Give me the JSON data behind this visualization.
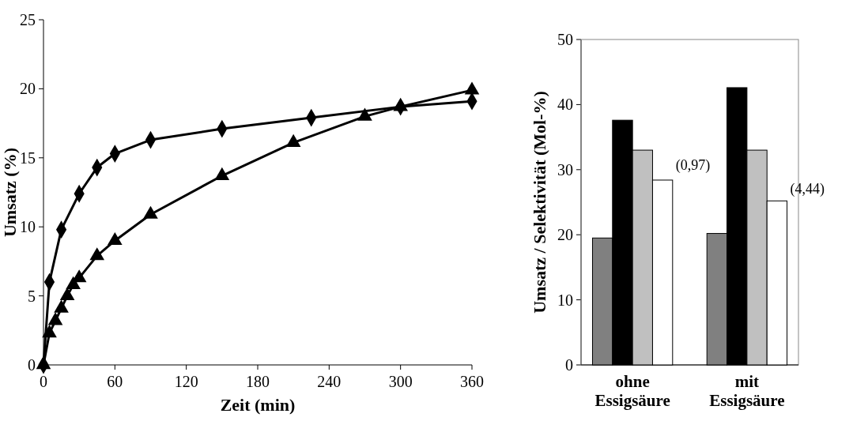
{
  "chart_data": [
    {
      "type": "line",
      "xlabel": "Zeit (min)",
      "ylabel": "Umsatz (%)",
      "xlim": [
        0,
        360
      ],
      "xticks": [
        0,
        60,
        120,
        180,
        240,
        300,
        360
      ],
      "ylim": [
        0,
        25
      ],
      "yticks": [
        0,
        5,
        10,
        15,
        20,
        25
      ],
      "grid": false,
      "line_style": "solid",
      "series": [
        {
          "color": "#000000",
          "marker": "diamond",
          "x": [
            0,
            5,
            15,
            30,
            45,
            60,
            90,
            150,
            225,
            300,
            360
          ],
          "values": [
            0,
            6,
            9.8,
            12.4,
            14.3,
            15.3,
            16.3,
            17.1,
            17.9,
            18.7,
            19.1
          ]
        },
        {
          "color": "#000000",
          "marker": "triangle",
          "x": [
            0,
            5,
            10,
            15,
            20,
            25,
            30,
            45,
            60,
            90,
            150,
            210,
            270,
            300,
            360
          ],
          "values": [
            0,
            2.3,
            3.2,
            4.1,
            5,
            5.8,
            6.3,
            7.9,
            9,
            10.9,
            13.7,
            16.1,
            18,
            18.7,
            19.9
          ]
        }
      ]
    },
    {
      "type": "bar",
      "ylabel": "Umsatz / Selektivität (Mol-%)",
      "categories": [
        "ohne Essigsäure",
        "mit Essigsäure"
      ],
      "ylim": [
        0,
        50
      ],
      "yticks": [
        0,
        10,
        20,
        30,
        40,
        50
      ],
      "grid": false,
      "series": [
        {
          "color": "#808080",
          "values": [
            19.5,
            20.2
          ]
        },
        {
          "color": "#000000",
          "values": [
            37.6,
            42.6
          ]
        },
        {
          "color": "#c0c0c0",
          "values": [
            33,
            33
          ]
        },
        {
          "color": "#ffffff",
          "values": [
            28.4,
            25.2
          ]
        }
      ],
      "annotations": [
        "(0,97)",
        "(4,44)"
      ]
    }
  ]
}
